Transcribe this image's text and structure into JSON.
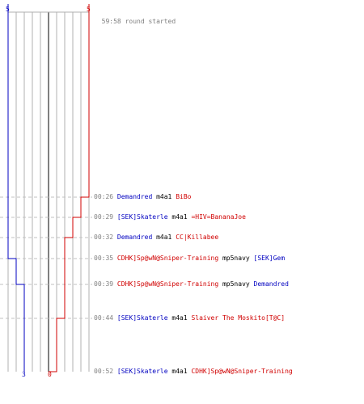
{
  "scores": {
    "blue_start": "5",
    "red_start": "5",
    "blue_end": "3",
    "red_end": "0"
  },
  "colors": {
    "blue": "#0000c0",
    "red": "#d00000",
    "grid": "#b0b0b0",
    "center": "#808080",
    "dash": "#c0c0c0"
  },
  "header": {
    "time": "59:58",
    "text": "round started"
  },
  "events": [
    {
      "time": "00:26",
      "killer": "Demandred",
      "killer_team": "blue",
      "weapon": "m4a1",
      "victim": "BiBo",
      "victim_team": "red"
    },
    {
      "time": "00:29",
      "killer": "[SEK]Skaterle",
      "killer_team": "blue",
      "weapon": "m4a1",
      "victim": "=HIV=BananaJoe",
      "victim_team": "red"
    },
    {
      "time": "00:32",
      "killer": "Demandred",
      "killer_team": "blue",
      "weapon": "m4a1",
      "victim": "CC|Killabee",
      "victim_team": "red"
    },
    {
      "time": "00:35",
      "killer": "CDHK]Sp@wN@Sniper-Training",
      "killer_team": "red",
      "weapon": "mp5navy",
      "victim": "[SEK]Gem",
      "victim_team": "blue"
    },
    {
      "time": "00:39",
      "killer": "CDHK]Sp@wN@Sniper-Training",
      "killer_team": "red",
      "weapon": "mp5navy",
      "victim": "Demandred",
      "victim_team": "blue"
    },
    {
      "time": "00:44",
      "killer": "[SEK]Skaterle",
      "killer_team": "blue",
      "weapon": "m4a1",
      "victim": "Slaiver The Moskito[T@C]",
      "victim_team": "red"
    },
    {
      "time": "00:52",
      "killer": "[SEK]Skaterle",
      "killer_team": "blue",
      "weapon": "m4a1",
      "victim": "CDHK]Sp@wN@Sniper-Training",
      "victim_team": "red"
    }
  ],
  "timeline": {
    "blue_alive": [
      5,
      5,
      5,
      5,
      4,
      3,
      3,
      3
    ],
    "red_alive": [
      5,
      4,
      3,
      2,
      2,
      2,
      1,
      0
    ]
  }
}
